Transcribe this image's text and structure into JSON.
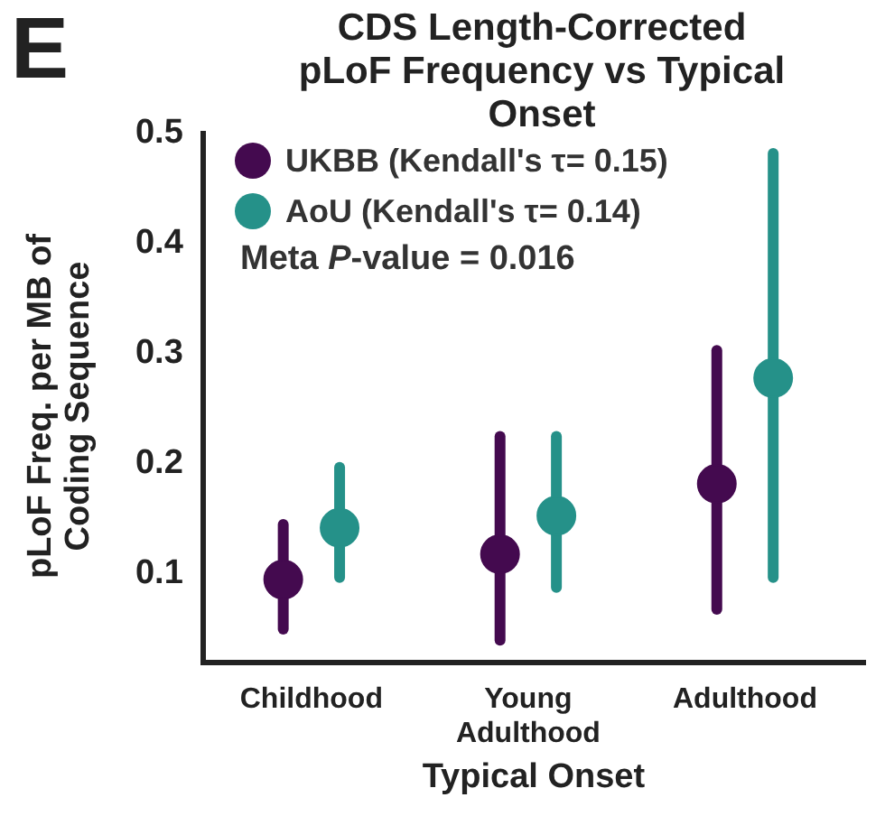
{
  "chart_data": {
    "type": "scatter",
    "title": "CDS Length-Corrected pLoF Frequency vs Typical Onset",
    "xlabel": "Typical Onset",
    "ylabel": "pLoF Freq. per MB of Coding Sequence",
    "categories": [
      "Childhood",
      "Young Adulthood",
      "Adulthood"
    ],
    "series": [
      {
        "name": "UKBB (Kendall's τ= 0.15)",
        "color": "#440a4f",
        "values": [
          0.095,
          0.118,
          0.182
        ],
        "errors": [
          [
            0.05,
            0.145
          ],
          [
            0.04,
            0.225
          ],
          [
            0.068,
            0.303
          ]
        ]
      },
      {
        "name": "AoU (Kendall's τ= 0.14)",
        "color": "#259189",
        "values": [
          0.142,
          0.153,
          0.278
        ],
        "errors": [
          [
            0.097,
            0.197
          ],
          [
            0.088,
            0.225
          ],
          [
            0.097,
            0.482
          ]
        ]
      }
    ],
    "ylim": [
      0.02,
      0.5
    ],
    "yticks": [
      0.1,
      0.2,
      0.3,
      0.4,
      0.5
    ],
    "marker": "circle",
    "legend": "top left",
    "grid": false,
    "annotations": [
      "E",
      "Meta P-value = 0.016"
    ]
  }
}
